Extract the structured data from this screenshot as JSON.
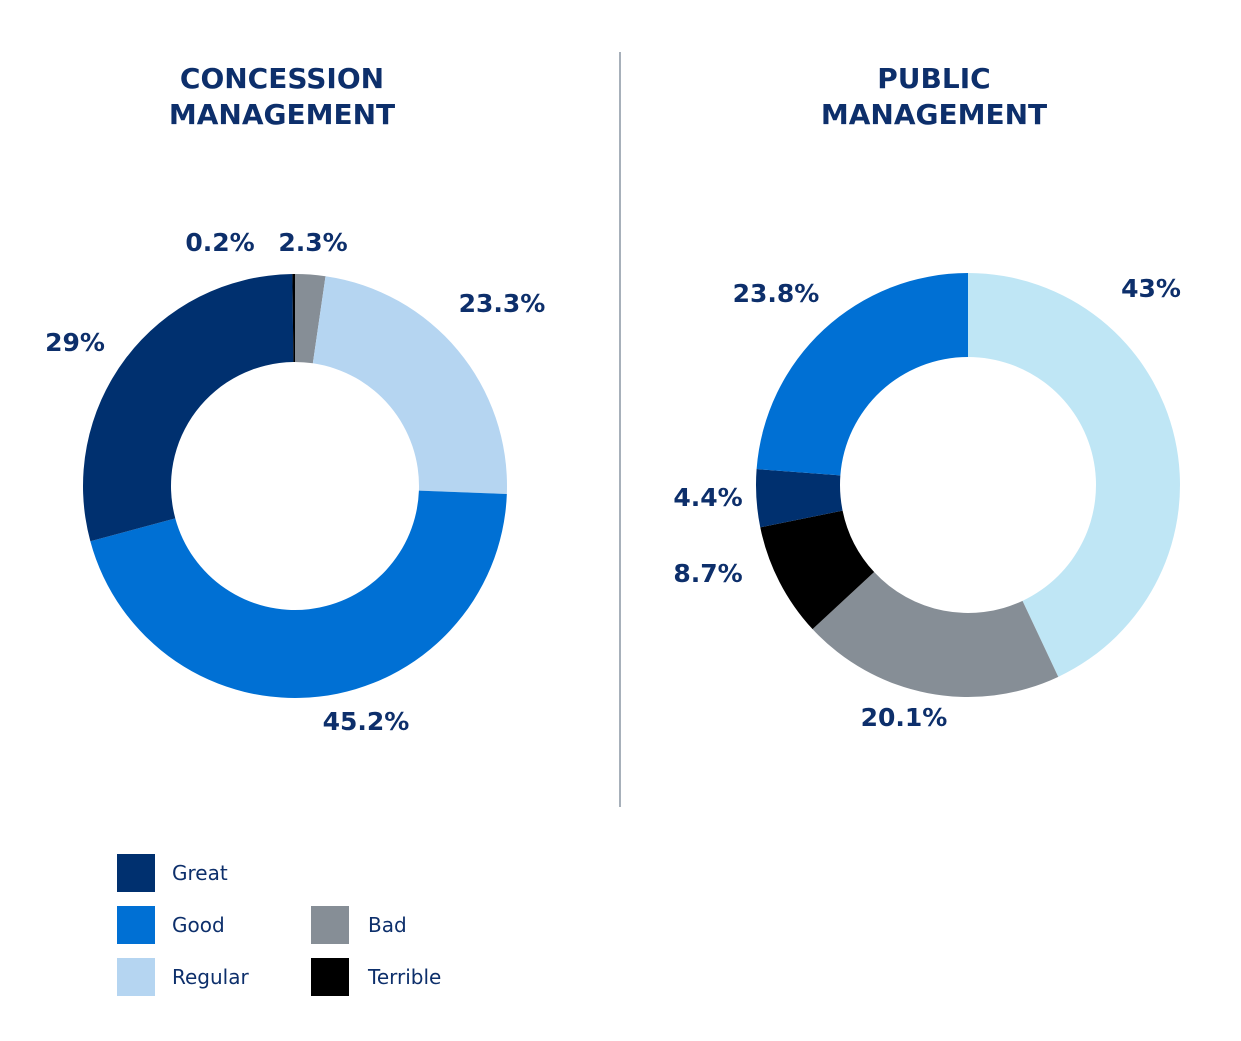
{
  "colors": {
    "Great": "#00306f",
    "Good": "#0070d4",
    "Regular": "#b5d5f1",
    "Regular_public": "#bfe6f5",
    "Bad": "#868e96",
    "Terrible": "#000000",
    "text": "#0d2f6b"
  },
  "legend": [
    {
      "label": "Great",
      "color": "#00306f"
    },
    {
      "label": "Good",
      "color": "#0070d4"
    },
    {
      "label": "Regular",
      "color": "#b5d5f1"
    },
    {
      "label": "Bad",
      "color": "#868e96"
    },
    {
      "label": "Terrible",
      "color": "#000000"
    }
  ],
  "chart_data": [
    {
      "type": "pie",
      "title": "CONCESSION\nMANAGEMENT",
      "slices": [
        {
          "category": "Bad",
          "value": 2.3,
          "label": "2.3%"
        },
        {
          "category": "Regular",
          "value": 23.3,
          "label": "23.3%"
        },
        {
          "category": "Good",
          "value": 45.2,
          "label": "45.2%"
        },
        {
          "category": "Great",
          "value": 29,
          "label": "29%"
        },
        {
          "category": "Terrible",
          "value": 0.2,
          "label": "0.2%"
        }
      ]
    },
    {
      "type": "pie",
      "title": "PUBLIC\nMANAGEMENT",
      "slices": [
        {
          "category": "Regular",
          "value": 43,
          "label": "43%"
        },
        {
          "category": "Bad",
          "value": 20.1,
          "label": "20.1%"
        },
        {
          "category": "Terrible",
          "value": 8.7,
          "label": "8.7%"
        },
        {
          "category": "Great",
          "value": 4.4,
          "label": "4.4%"
        },
        {
          "category": "Good",
          "value": 23.8,
          "label": "23.8%"
        }
      ]
    }
  ]
}
